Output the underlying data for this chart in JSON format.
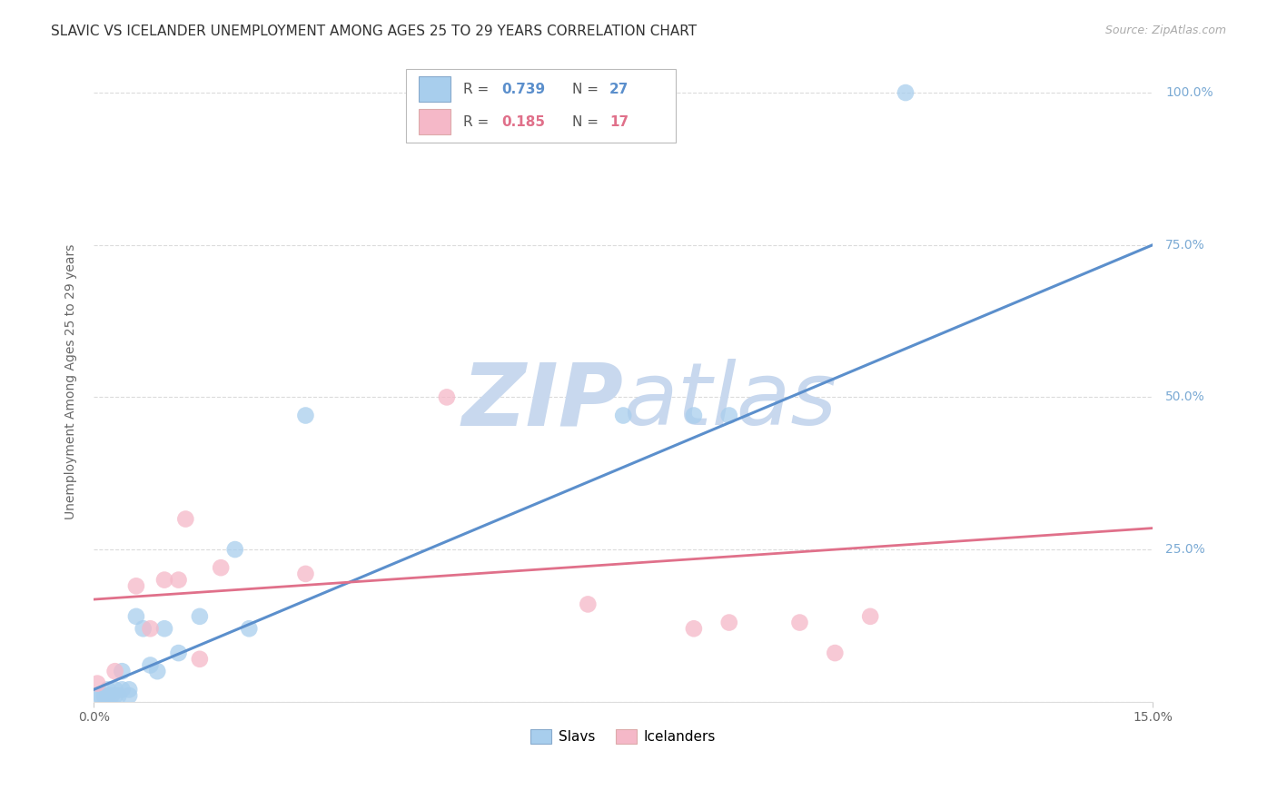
{
  "title": "SLAVIC VS ICELANDER UNEMPLOYMENT AMONG AGES 25 TO 29 YEARS CORRELATION CHART",
  "source": "Source: ZipAtlas.com",
  "ylabel": "Unemployment Among Ages 25 to 29 years",
  "xlim": [
    0.0,
    0.15
  ],
  "ylim": [
    0.0,
    1.05
  ],
  "slavs_x": [
    0.0005,
    0.001,
    0.0015,
    0.002,
    0.002,
    0.0025,
    0.003,
    0.003,
    0.0035,
    0.004,
    0.004,
    0.005,
    0.005,
    0.006,
    0.007,
    0.008,
    0.009,
    0.01,
    0.012,
    0.015,
    0.02,
    0.022,
    0.03,
    0.075,
    0.085,
    0.09,
    0.115
  ],
  "slavs_y": [
    0.01,
    0.01,
    0.01,
    0.01,
    0.02,
    0.01,
    0.01,
    0.02,
    0.01,
    0.02,
    0.05,
    0.01,
    0.02,
    0.14,
    0.12,
    0.06,
    0.05,
    0.12,
    0.08,
    0.14,
    0.25,
    0.12,
    0.47,
    0.47,
    0.47,
    0.47,
    1.0
  ],
  "icelanders_x": [
    0.0005,
    0.003,
    0.006,
    0.008,
    0.01,
    0.012,
    0.013,
    0.015,
    0.018,
    0.03,
    0.05,
    0.07,
    0.085,
    0.09,
    0.1,
    0.105,
    0.11
  ],
  "icelanders_y": [
    0.03,
    0.05,
    0.19,
    0.12,
    0.2,
    0.2,
    0.3,
    0.07,
    0.22,
    0.21,
    0.5,
    0.16,
    0.12,
    0.13,
    0.13,
    0.08,
    0.14
  ],
  "slavs_line_x0": 0.0,
  "slavs_line_y0": 0.02,
  "slavs_line_x1": 0.15,
  "slavs_line_y1": 0.75,
  "icel_line_x0": 0.0,
  "icel_line_y0": 0.168,
  "icel_line_x1": 0.15,
  "icel_line_y1": 0.285,
  "slavs_R": "0.739",
  "slavs_N": "27",
  "icelanders_R": "0.185",
  "icelanders_N": "17",
  "slavs_color": "#A8CEED",
  "icelanders_color": "#F5B8C8",
  "slavs_line_color": "#5B8FCC",
  "icelanders_line_color": "#E0708A",
  "background_color": "#FFFFFF",
  "grid_color": "#CCCCCC",
  "watermark_zip_color": "#C8D8EE",
  "watermark_atlas_color": "#C8D8EE",
  "title_fontsize": 11,
  "label_fontsize": 10,
  "tick_fontsize": 10,
  "right_tick_color": "#7BAAD4"
}
